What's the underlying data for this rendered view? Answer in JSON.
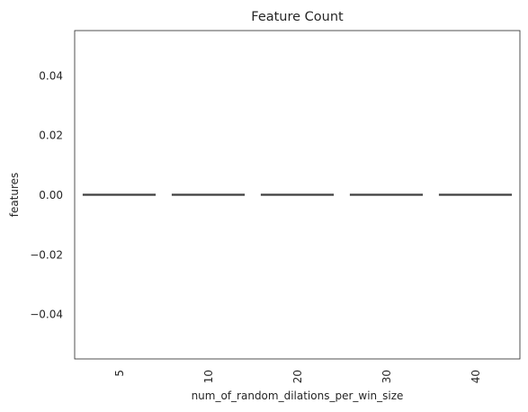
{
  "chart_data": {
    "type": "box",
    "title": "Feature Count",
    "xlabel": "num_of_random_dilations_per_win_size",
    "ylabel": "features",
    "categories": [
      "5",
      "10",
      "20",
      "30",
      "40"
    ],
    "values": [
      0,
      0,
      0,
      0,
      0
    ],
    "ylim": [
      -0.055,
      0.055
    ],
    "yticks": [
      -0.04,
      -0.02,
      0.0,
      0.02,
      0.04
    ],
    "ytick_labels": [
      "−0.04",
      "−0.02",
      "0.00",
      "0.02",
      "0.04"
    ],
    "xtick_rotation": "vertical",
    "grid": false,
    "legend": "none",
    "colors": {
      "box_line": "#3f3f3f",
      "frame": "#262626",
      "background": "#ffffff"
    }
  }
}
